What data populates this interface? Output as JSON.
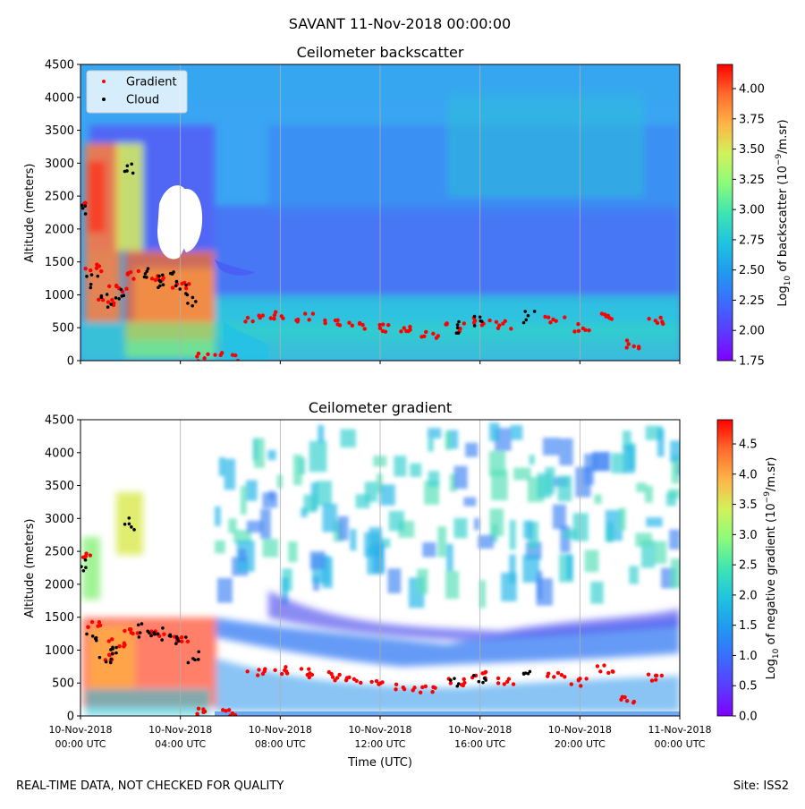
{
  "figure": {
    "suptitle": "SAVANT 11-Nov-2018 00:00:00",
    "footer_left": "REAL-TIME DATA, NOT CHECKED FOR QUALITY",
    "footer_right": "Site: ISS2"
  },
  "colors": {
    "background_field": "#3a9bf0",
    "gradient_marker": "#ff0000",
    "cloud_marker": "#000000",
    "colormap": [
      "#7f00ff",
      "#5a3cff",
      "#3a6dff",
      "#1f9bf0",
      "#1fc4e0",
      "#3fe6b0",
      "#8dfb7a",
      "#d2f25a",
      "#ffb347",
      "#ff6b2d",
      "#ff0000"
    ]
  },
  "chart_data": [
    {
      "type": "heatmap",
      "title": "Ceilometer backscatter",
      "xlabel": "",
      "ylabel": "Altitude (meters)",
      "x_range": [
        "10-Nov-2018 00:00 UTC",
        "11-Nov-2018 00:00 UTC"
      ],
      "ylim": [
        0,
        4500
      ],
      "yticks": [
        "0",
        "500",
        "1000",
        "1500",
        "2000",
        "2500",
        "3000",
        "3500",
        "4000",
        "4500"
      ],
      "grid": "vertical lines every 4 h",
      "legend": {
        "placement": "top-left",
        "entries": [
          "Gradient",
          "Cloud"
        ]
      },
      "colorbar": {
        "label": "Log10 of backscatter (10^-9/m.sr)",
        "range": [
          1.75,
          4.2
        ],
        "ticks": [
          "1.75",
          "2.00",
          "2.25",
          "2.50",
          "2.75",
          "3.00",
          "3.25",
          "3.50",
          "3.75",
          "4.00"
        ],
        "tick_values": [
          1.75,
          2.0,
          2.25,
          2.5,
          2.75,
          3.0,
          3.25,
          3.5,
          3.75,
          4.0
        ]
      },
      "series": [
        {
          "name": "Gradient",
          "marker": "red dots",
          "x_hours": [
            0,
            0.5,
            1,
            1.5,
            2,
            3,
            4,
            5,
            6,
            7,
            8,
            9,
            10,
            11,
            12,
            13,
            14,
            15,
            16,
            17,
            19,
            20,
            21,
            22,
            23
          ],
          "y": [
            2400,
            1400,
            900,
            1100,
            1300,
            1250,
            1150,
            50,
            50,
            650,
            700,
            650,
            600,
            550,
            500,
            450,
            400,
            500,
            600,
            550,
            600,
            500,
            700,
            250,
            600
          ]
        },
        {
          "name": "Cloud",
          "marker": "black dots",
          "x_hours": [
            0,
            0.5,
            1,
            1.5,
            2,
            2.5,
            3,
            3.5,
            4,
            4.5,
            15,
            16,
            18
          ],
          "y": [
            2300,
            1200,
            900,
            1000,
            2900,
            1300,
            1200,
            1250,
            1100,
            900,
            520,
            580,
            650
          ]
        }
      ]
    },
    {
      "type": "heatmap",
      "title": "Ceilometer gradient",
      "xlabel": "Time (UTC)",
      "ylabel": "Altitude (meters)",
      "x_range": [
        "10-Nov-2018 00:00 UTC",
        "11-Nov-2018 00:00 UTC"
      ],
      "xticks": [
        [
          "10-Nov-2018",
          "00:00 UTC"
        ],
        [
          "10-Nov-2018",
          "04:00 UTC"
        ],
        [
          "10-Nov-2018",
          "08:00 UTC"
        ],
        [
          "10-Nov-2018",
          "12:00 UTC"
        ],
        [
          "10-Nov-2018",
          "16:00 UTC"
        ],
        [
          "10-Nov-2018",
          "20:00 UTC"
        ],
        [
          "11-Nov-2018",
          "00:00 UTC"
        ]
      ],
      "ylim": [
        0,
        4500
      ],
      "yticks": [
        "0",
        "500",
        "1000",
        "1500",
        "2000",
        "2500",
        "3000",
        "3500",
        "4000",
        "4500"
      ],
      "grid": "vertical lines every 4 h",
      "colorbar": {
        "label": "Log10 of negative gradient (10^-9/m.sr)",
        "range": [
          0,
          4.9
        ],
        "ticks": [
          "0.0",
          "0.5",
          "1.0",
          "1.5",
          "2.0",
          "2.5",
          "3.0",
          "3.5",
          "4.0",
          "4.5"
        ],
        "tick_values": [
          0,
          0.5,
          1.0,
          1.5,
          2.0,
          2.5,
          3.0,
          3.5,
          4.0,
          4.5
        ]
      }
    }
  ]
}
